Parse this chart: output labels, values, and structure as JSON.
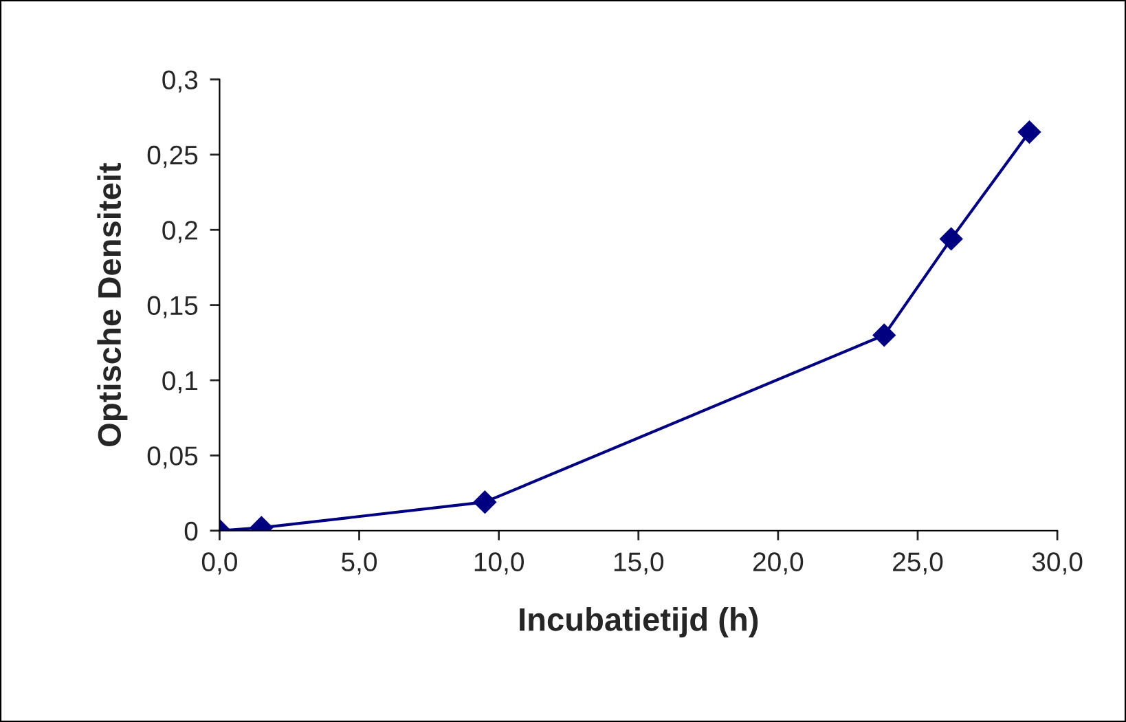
{
  "chart_data": {
    "type": "line",
    "xlabel": "Incubatietijd (h)",
    "ylabel": "Optische Densiteit",
    "x": [
      0,
      1.5,
      9.5,
      23.8,
      26.2,
      29.0
    ],
    "series": [
      {
        "color": "#000080",
        "values": [
          0,
          0.002,
          0.019,
          0.13,
          0.194,
          0.265
        ]
      }
    ],
    "xlim": [
      0,
      30
    ],
    "xticks": [
      {
        "value": 0,
        "label": "0,0"
      },
      {
        "value": 5,
        "label": "5,0"
      },
      {
        "value": 10,
        "label": "10,0"
      },
      {
        "value": 15,
        "label": "15,0"
      },
      {
        "value": 20,
        "label": "20,0"
      },
      {
        "value": 25,
        "label": "25,0"
      },
      {
        "value": 30,
        "label": "30,0"
      }
    ],
    "ylim": [
      0,
      0.3
    ],
    "yticks": [
      0,
      {
        "value": 0.05,
        "label": "0,05"
      },
      {
        "value": 0.1,
        "label": "0,1"
      },
      {
        "value": 0.15,
        "label": "0,15"
      },
      {
        "value": 0.2,
        "label": "0,2"
      },
      {
        "value": 0.25,
        "label": "0,25"
      },
      {
        "value": 0.3,
        "label": "0,3"
      }
    ],
    "grid": false,
    "marker": "diamond",
    "line_style": "solid"
  }
}
